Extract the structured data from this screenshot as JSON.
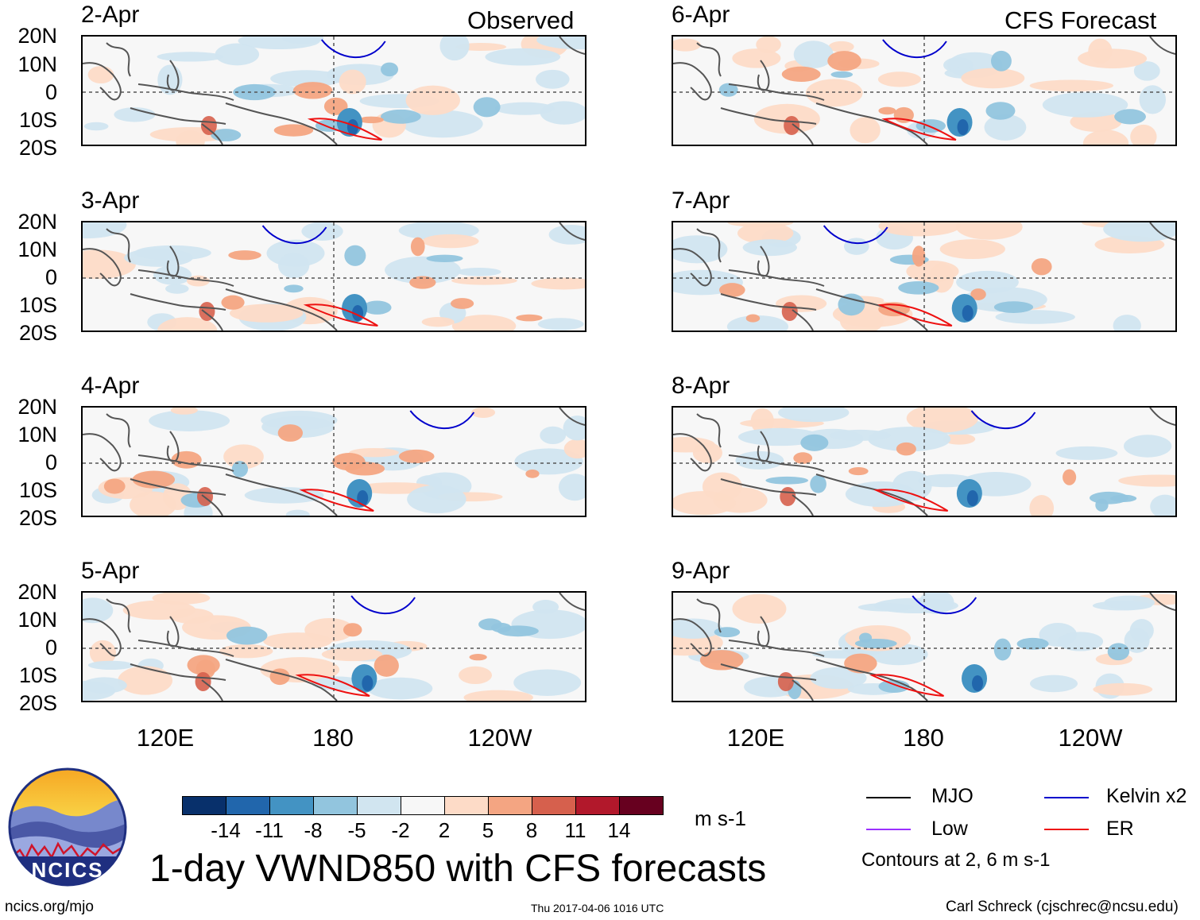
{
  "title": "1-day VWND850 with CFS forecasts",
  "panel_headers": {
    "observed": "Observed",
    "forecast": "CFS Forecast"
  },
  "panels": [
    {
      "date": "2-Apr",
      "kind": "observed"
    },
    {
      "date": "3-Apr",
      "kind": "observed"
    },
    {
      "date": "4-Apr",
      "kind": "observed"
    },
    {
      "date": "5-Apr",
      "kind": "observed"
    },
    {
      "date": "6-Apr",
      "kind": "forecast"
    },
    {
      "date": "7-Apr",
      "kind": "forecast"
    },
    {
      "date": "8-Apr",
      "kind": "forecast"
    },
    {
      "date": "9-Apr",
      "kind": "forecast"
    }
  ],
  "lat_labels": [
    "20N",
    "10N",
    "0",
    "10S",
    "20S"
  ],
  "lon_labels": [
    "120E",
    "180",
    "120W"
  ],
  "colorbar": {
    "unit": "m s-1",
    "ticks": [
      "-14",
      "-11",
      "-8",
      "-5",
      "-2",
      "2",
      "5",
      "8",
      "11",
      "14"
    ],
    "colors": [
      "#08306b",
      "#2166ac",
      "#4393c3",
      "#92c5de",
      "#d1e5f0",
      "#f7f7f7",
      "#fddbc7",
      "#f4a582",
      "#d6604d",
      "#b2182b",
      "#67001f"
    ]
  },
  "legend": {
    "items": [
      {
        "label": "MJO",
        "color": "#000000"
      },
      {
        "label": "Low",
        "color": "#9b30ff"
      },
      {
        "label": "Kelvin x2",
        "color": "#0000cc"
      },
      {
        "label": "ER",
        "color": "#ee1111"
      }
    ],
    "note": "Contours at 2, 6 m s-1"
  },
  "logo": {
    "text": "NCICS"
  },
  "footer": {
    "url": "ncics.org/mjo",
    "timestamp": "Thu 2017-04-06 1016 UTC",
    "credit": "Carl Schreck (cjschrec@ncsu.edu)"
  }
}
